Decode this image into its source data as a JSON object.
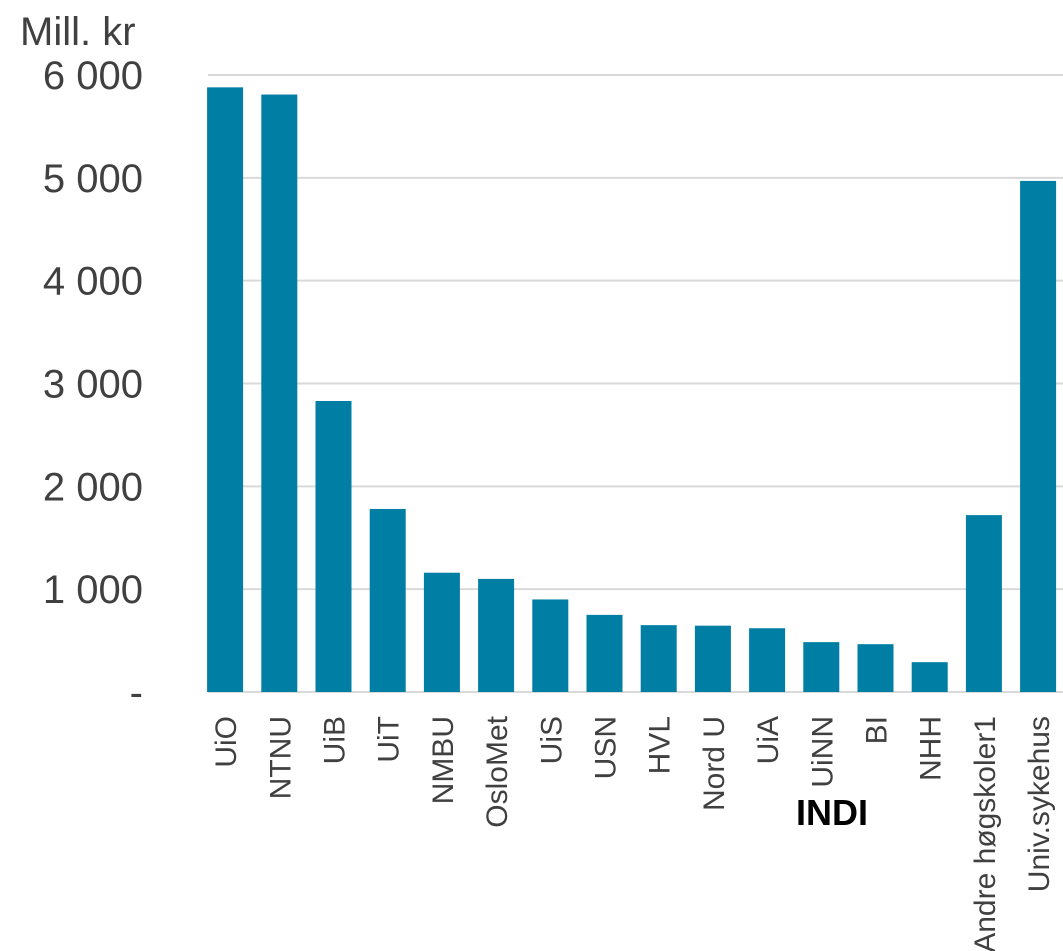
{
  "chart_data": {
    "type": "bar",
    "ylabel": "Mill. kr",
    "ylim": [
      0,
      6000
    ],
    "yticks": [
      {
        "value": 0,
        "label": "-"
      },
      {
        "value": 1000,
        "label": "1 000"
      },
      {
        "value": 2000,
        "label": "2 000"
      },
      {
        "value": 3000,
        "label": "3 000"
      },
      {
        "value": 4000,
        "label": "4 000"
      },
      {
        "value": 5000,
        "label": "5 000"
      },
      {
        "value": 6000,
        "label": "6 000"
      }
    ],
    "grid": true,
    "categories": [
      "UiO",
      "NTNU",
      "UiB",
      "UiT",
      "NMBU",
      "OsloMet",
      "UiS",
      "USN",
      "HVL",
      "Nord U",
      "UiA",
      "UiNN",
      "BI",
      "NHH",
      "Andre høgskoler1",
      "Univ.sykehus",
      "INDI"
    ],
    "values": [
      5880,
      5810,
      2830,
      1780,
      1160,
      1100,
      900,
      750,
      650,
      645,
      620,
      485,
      465,
      290,
      1720,
      4970,
      null
    ],
    "bar_color": "#007EA3",
    "grid_color": "#D9D9D9",
    "text_color": "#404040"
  }
}
